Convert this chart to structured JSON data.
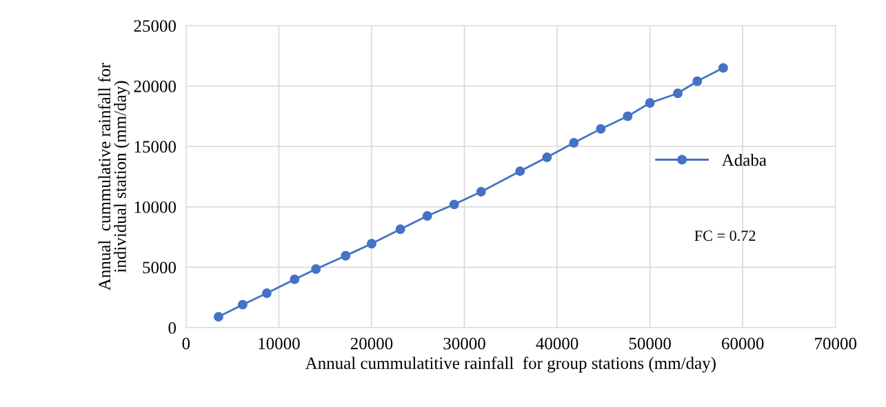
{
  "chart_data": {
    "type": "line",
    "xlabel": "Annual cummulatitive rainfall  for group stations (mm/day)",
    "ylabel": "Annual  cummulative rainfall for\nindividual station (mm/day)",
    "x": [
      3500,
      6100,
      8700,
      11700,
      14000,
      17200,
      20000,
      23100,
      26000,
      28900,
      31800,
      36000,
      38900,
      41800,
      44700,
      47600,
      50000,
      53000,
      55100,
      57900
    ],
    "series": [
      {
        "name": "Adaba",
        "color": "#4472c4",
        "values": [
          900,
          1900,
          2850,
          4000,
          4850,
          5950,
          6950,
          8150,
          9250,
          10200,
          11250,
          12950,
          14100,
          15300,
          16450,
          17500,
          18600,
          19400,
          20400,
          21500
        ]
      }
    ],
    "annotations": [
      "FC = 0.72"
    ],
    "xlim": [
      0,
      70000
    ],
    "xticks": [
      0,
      10000,
      20000,
      30000,
      40000,
      50000,
      60000,
      70000
    ],
    "ylim": [
      0,
      25000
    ],
    "yticks": [
      0,
      5000,
      10000,
      15000,
      20000,
      25000
    ],
    "grid": true,
    "legend": "right",
    "marker": "circle",
    "line_style": "solid"
  }
}
